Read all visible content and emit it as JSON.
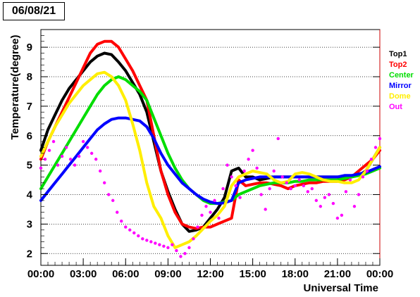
{
  "chart_title": "06/08/21",
  "chart_data": {
    "type": "scatter",
    "title": "06/08/21",
    "xlabel": "Universal Time",
    "ylabel": "Temperature(degree)",
    "xlim": [
      0,
      24
    ],
    "ylim": [
      1.6,
      9.6
    ],
    "x_ticks": [
      "00:00",
      "03:00",
      "06:00",
      "09:00",
      "12:00",
      "15:00",
      "18:00",
      "21:00",
      "00:00"
    ],
    "y_ticks": [
      "2",
      "3",
      "4",
      "5",
      "6",
      "7",
      "8",
      "9"
    ],
    "grid": "horizontal-dotted",
    "legend_position": "right",
    "series": [
      {
        "name": "Top1",
        "color": "#000000",
        "x": [
          0,
          0.5,
          1,
          1.5,
          2,
          2.5,
          3,
          3.5,
          4,
          4.5,
          5,
          5.5,
          6,
          6.5,
          7,
          7.5,
          8,
          8.5,
          9,
          9.5,
          10,
          10.5,
          11,
          11.5,
          12,
          12.5,
          13,
          13.5,
          14,
          14.5,
          15,
          15.5,
          16,
          16.5,
          17,
          17.5,
          18,
          18.5,
          19,
          19.5,
          20,
          20.5,
          21,
          21.5,
          22,
          22.5,
          23,
          23.5,
          24
        ],
        "y": [
          5.5,
          6.2,
          6.7,
          7.2,
          7.6,
          7.9,
          8.2,
          8.5,
          8.7,
          8.8,
          8.75,
          8.5,
          8.2,
          7.8,
          7.4,
          6.8,
          5.8,
          4.8,
          4.1,
          3.5,
          3.0,
          2.75,
          2.8,
          2.9,
          3.2,
          3.5,
          3.9,
          4.8,
          4.9,
          4.6,
          4.6,
          4.5,
          4.55,
          4.6,
          4.6,
          4.6,
          4.6,
          4.6,
          4.6,
          4.6,
          4.6,
          4.6,
          4.6,
          4.6,
          4.6,
          4.65,
          4.8,
          5.2,
          5.6
        ]
      },
      {
        "name": "Top2",
        "color": "#ff0000",
        "x": [
          0,
          0.5,
          1,
          1.5,
          2,
          2.5,
          3,
          3.5,
          4,
          4.5,
          5,
          5.5,
          6,
          6.5,
          7,
          7.5,
          8,
          8.5,
          9,
          9.5,
          10,
          10.5,
          11,
          11.5,
          12,
          12.5,
          13,
          13.5,
          14,
          14.5,
          15,
          15.5,
          16,
          16.5,
          17,
          17.5,
          18,
          18.5,
          19,
          19.5,
          20,
          20.5,
          21,
          21.5,
          22,
          22.5,
          23,
          23.5,
          24
        ],
        "y": [
          5.2,
          5.8,
          6.3,
          6.8,
          7.3,
          7.8,
          8.3,
          8.8,
          9.1,
          9.2,
          9.2,
          9.0,
          8.6,
          8.2,
          7.7,
          7.2,
          6.0,
          4.8,
          4.0,
          3.4,
          3.0,
          2.9,
          2.85,
          2.9,
          2.9,
          3.0,
          3.1,
          3.2,
          4.5,
          4.3,
          4.35,
          4.4,
          4.4,
          4.35,
          4.3,
          4.2,
          4.3,
          4.35,
          4.4,
          4.4,
          4.45,
          4.45,
          4.45,
          4.5,
          4.6,
          4.8,
          5.0,
          5.2,
          5.5
        ]
      },
      {
        "name": "Center",
        "color": "#00dd00",
        "x": [
          0,
          0.5,
          1,
          1.5,
          2,
          2.5,
          3,
          3.5,
          4,
          4.5,
          5,
          5.5,
          6,
          6.5,
          7,
          7.5,
          8,
          8.5,
          9,
          9.5,
          10,
          10.5,
          11,
          11.5,
          12,
          12.5,
          13,
          13.5,
          14,
          14.5,
          15,
          15.5,
          16,
          16.5,
          17,
          17.5,
          18,
          18.5,
          19,
          19.5,
          20,
          20.5,
          21,
          21.5,
          22,
          22.5,
          23,
          23.5,
          24
        ],
        "y": [
          4.2,
          4.6,
          5.0,
          5.4,
          5.8,
          6.2,
          6.6,
          7.0,
          7.4,
          7.7,
          7.9,
          8.0,
          7.9,
          7.7,
          7.5,
          7.2,
          6.6,
          6.0,
          5.4,
          4.9,
          4.5,
          4.2,
          4.0,
          3.8,
          3.7,
          3.7,
          3.75,
          3.8,
          4.0,
          4.1,
          4.2,
          4.3,
          4.35,
          4.4,
          4.4,
          4.4,
          4.45,
          4.45,
          4.5,
          4.5,
          4.5,
          4.5,
          4.5,
          4.55,
          4.6,
          4.65,
          4.7,
          4.8,
          4.9
        ]
      },
      {
        "name": "Mirror",
        "color": "#0000ff",
        "x": [
          0,
          0.5,
          1,
          1.5,
          2,
          2.5,
          3,
          3.5,
          4,
          4.5,
          5,
          5.5,
          6,
          6.5,
          7,
          7.5,
          8,
          8.5,
          9,
          9.5,
          10,
          10.5,
          11,
          11.5,
          12,
          12.5,
          13,
          13.5,
          14,
          14.5,
          15,
          15.5,
          16,
          16.5,
          17,
          17.5,
          18,
          18.5,
          19,
          19.5,
          20,
          20.5,
          21,
          21.5,
          22,
          22.5,
          23,
          23.5,
          24
        ],
        "y": [
          3.8,
          4.1,
          4.4,
          4.7,
          5.0,
          5.3,
          5.6,
          5.9,
          6.2,
          6.4,
          6.55,
          6.6,
          6.6,
          6.55,
          6.5,
          6.3,
          5.9,
          5.4,
          5.0,
          4.7,
          4.4,
          4.2,
          4.0,
          3.85,
          3.75,
          3.7,
          3.72,
          3.8,
          4.4,
          4.5,
          4.55,
          4.6,
          4.6,
          4.6,
          4.6,
          4.6,
          4.6,
          4.6,
          4.6,
          4.6,
          4.6,
          4.6,
          4.6,
          4.65,
          4.65,
          4.7,
          4.75,
          4.85,
          4.95
        ]
      },
      {
        "name": "Dome",
        "color": "#ffee00",
        "x": [
          0,
          0.5,
          1,
          1.5,
          2,
          2.5,
          3,
          3.5,
          4,
          4.5,
          5,
          5.5,
          6,
          6.5,
          7,
          7.5,
          8,
          8.5,
          9,
          9.5,
          10,
          10.5,
          11,
          11.5,
          12,
          12.5,
          13,
          13.5,
          14,
          14.5,
          15,
          15.5,
          16,
          16.5,
          17,
          17.5,
          18,
          18.5,
          19,
          19.5,
          20,
          20.5,
          21,
          21.5,
          22,
          22.5,
          23,
          23.5,
          24
        ],
        "y": [
          5.3,
          5.8,
          6.3,
          6.7,
          7.1,
          7.4,
          7.7,
          7.9,
          8.1,
          8.15,
          8.0,
          7.7,
          7.2,
          6.4,
          5.5,
          4.4,
          3.6,
          3.2,
          2.6,
          2.2,
          2.3,
          2.4,
          2.6,
          2.85,
          3.1,
          3.3,
          3.6,
          4.3,
          4.6,
          4.7,
          4.8,
          4.75,
          4.7,
          4.5,
          4.4,
          4.45,
          4.7,
          4.75,
          4.7,
          4.6,
          4.5,
          4.45,
          4.45,
          4.4,
          4.4,
          4.5,
          4.8,
          5.2,
          5.6
        ]
      },
      {
        "name": "Out",
        "color": "#ff00ff",
        "x": [
          0,
          0.3,
          0.6,
          0.9,
          1.2,
          1.5,
          1.8,
          2.1,
          2.4,
          2.7,
          3.0,
          3.3,
          3.6,
          3.9,
          4.2,
          4.5,
          4.8,
          5.1,
          5.4,
          5.7,
          6.0,
          6.3,
          6.6,
          6.9,
          7.2,
          7.5,
          7.8,
          8.1,
          8.4,
          8.7,
          9.0,
          9.3,
          9.6,
          9.9,
          10.2,
          10.5,
          10.8,
          11.1,
          11.4,
          11.7,
          12.0,
          12.3,
          12.6,
          12.9,
          13.2,
          13.5,
          13.8,
          14.1,
          14.4,
          14.7,
          15.0,
          15.3,
          15.6,
          15.9,
          16.2,
          16.5,
          16.8,
          17.1,
          17.4,
          17.7,
          18.0,
          18.3,
          18.6,
          18.9,
          19.2,
          19.5,
          19.8,
          20.1,
          20.4,
          20.7,
          21.0,
          21.3,
          21.6,
          21.9,
          22.2,
          22.5,
          22.8,
          23.1,
          23.4,
          23.7,
          24.0
        ],
        "y": [
          4.9,
          5.2,
          5.5,
          5.8,
          5.0,
          5.3,
          5.6,
          5.2,
          5.0,
          5.3,
          5.8,
          5.6,
          5.4,
          5.2,
          4.8,
          4.4,
          4.0,
          3.8,
          3.4,
          3.1,
          2.9,
          2.8,
          2.7,
          2.6,
          2.5,
          2.45,
          2.4,
          2.35,
          2.3,
          2.25,
          2.2,
          2.3,
          2.1,
          1.9,
          2.0,
          2.2,
          2.5,
          2.9,
          3.3,
          3.6,
          3.4,
          3.8,
          3.2,
          4.2,
          5.0,
          4.6,
          4.3,
          3.9,
          4.8,
          5.2,
          5.5,
          4.9,
          4.0,
          3.5,
          4.2,
          4.8,
          5.9,
          4.6,
          4.4,
          4.2,
          4.3,
          4.5,
          4.3,
          4.1,
          4.2,
          3.8,
          3.6,
          3.9,
          4.0,
          3.7,
          3.2,
          3.3,
          4.1,
          4.5,
          3.6,
          4.0,
          4.6,
          4.8,
          5.2,
          5.6,
          5.9
        ]
      }
    ]
  }
}
